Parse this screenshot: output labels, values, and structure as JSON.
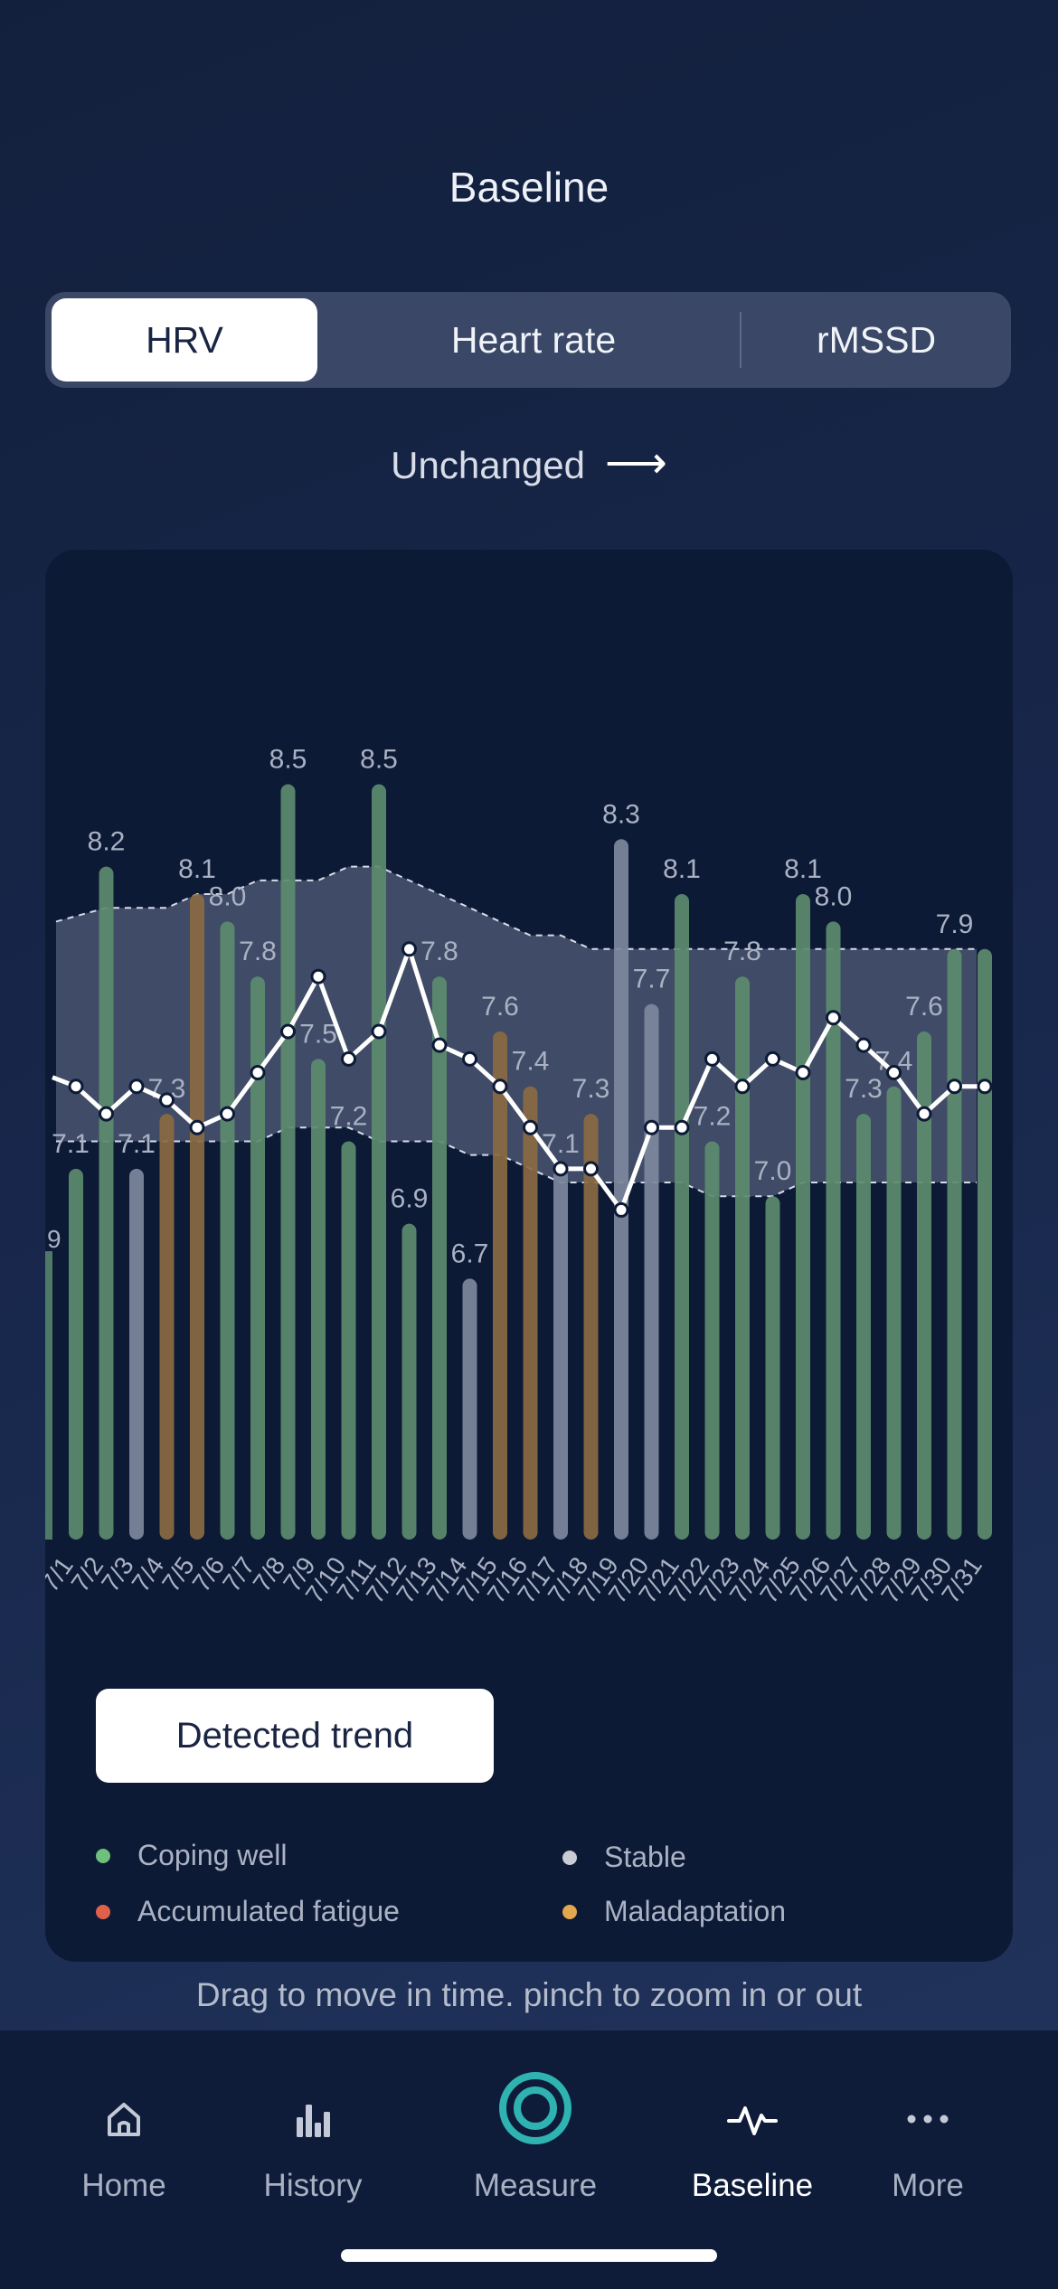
{
  "header": {
    "title": "Baseline"
  },
  "segments": [
    "HRV",
    "Heart rate",
    "rMSSD"
  ],
  "trend": {
    "label": "Unchanged",
    "icon": "arrow-right-icon"
  },
  "chart_data": {
    "type": "bar",
    "categories": [
      "7/1",
      "7/2",
      "7/3",
      "7/4",
      "7/5",
      "7/6",
      "7/7",
      "7/8",
      "7/9",
      "7/10",
      "7/11",
      "7/12",
      "7/13",
      "7/14",
      "7/15",
      "7/16",
      "7/17",
      "7/18",
      "7/19",
      "7/20",
      "7/21",
      "7/22",
      "7/23",
      "7/24",
      "7/25",
      "7/26",
      "7/27",
      "7/28",
      "7/29",
      "7/30",
      "7/31"
    ],
    "series": [
      {
        "values": [
          7.1,
          8.2,
          7.1,
          7.3,
          8.1,
          8.0,
          7.8,
          8.5,
          7.5,
          7.2,
          8.5,
          6.9,
          7.8,
          6.7,
          7.6,
          7.4,
          7.1,
          7.3,
          8.3,
          7.7,
          8.1,
          7.2,
          7.8,
          7.0,
          8.1,
          8.0,
          7.3,
          7.4,
          7.6,
          7.9,
          7.9
        ],
        "status": [
          "coping",
          "coping",
          "stable",
          "maladaptation",
          "maladaptation",
          "coping",
          "coping",
          "coping",
          "coping",
          "coping",
          "coping",
          "coping",
          "coping",
          "stable",
          "maladaptation",
          "maladaptation",
          "stable",
          "maladaptation",
          "stable",
          "stable",
          "coping",
          "coping",
          "coping",
          "coping",
          "coping",
          "coping",
          "coping",
          "coping",
          "coping",
          "coping",
          "coping"
        ]
      },
      {
        "values": [
          7.4,
          7.3,
          7.4,
          7.35,
          7.25,
          7.3,
          7.45,
          7.6,
          7.8,
          7.5,
          7.6,
          7.9,
          7.55,
          7.5,
          7.4,
          7.25,
          7.1,
          7.1,
          6.95,
          7.25,
          7.25,
          7.5,
          7.4,
          7.5,
          7.45,
          7.65,
          7.55,
          7.45,
          7.3,
          7.4,
          7.4
        ]
      }
    ],
    "partial_left_label": "9",
    "baseline_band": {
      "upper": [
        8.0,
        8.05,
        8.05,
        8.05,
        8.1,
        8.1,
        8.15,
        8.15,
        8.15,
        8.2,
        8.2,
        8.15,
        8.1,
        8.05,
        8.0,
        7.95,
        7.95,
        7.9,
        7.9,
        7.9,
        7.9,
        7.9,
        7.9,
        7.9,
        7.9,
        7.9,
        7.9,
        7.9,
        7.9,
        7.9,
        7.9
      ],
      "lower": [
        7.2,
        7.2,
        7.2,
        7.2,
        7.2,
        7.2,
        7.2,
        7.25,
        7.25,
        7.25,
        7.2,
        7.2,
        7.2,
        7.15,
        7.15,
        7.1,
        7.05,
        7.05,
        7.05,
        7.05,
        7.05,
        7.0,
        7.0,
        7.0,
        7.05,
        7.05,
        7.05,
        7.05,
        7.05,
        7.05,
        7.05
      ]
    },
    "ylim": [
      5.75,
      8.9
    ],
    "colors": {
      "coping": "#5b8b6e",
      "stable": "#7d879c",
      "maladaptation": "#8a6a43",
      "line": "#ffffff",
      "band": "#6b7590"
    }
  },
  "detected_trend_button": "Detected trend",
  "legend": [
    {
      "label": "Coping well",
      "color": "#6ec07a"
    },
    {
      "label": "Stable",
      "color": "#c9ccd3"
    },
    {
      "label": "Accumulated fatigue",
      "color": "#e0614a"
    },
    {
      "label": "Maladaptation",
      "color": "#e3a84e"
    }
  ],
  "hint": "Drag to move in time. pinch to zoom in or out",
  "tabs": [
    {
      "label": "Home",
      "icon": "home-icon"
    },
    {
      "label": "History",
      "icon": "bar-chart-icon"
    },
    {
      "label": "Measure",
      "icon": "measure-ring-icon"
    },
    {
      "label": "Baseline",
      "icon": "pulse-icon"
    },
    {
      "label": "More",
      "icon": "more-dots-icon"
    }
  ]
}
